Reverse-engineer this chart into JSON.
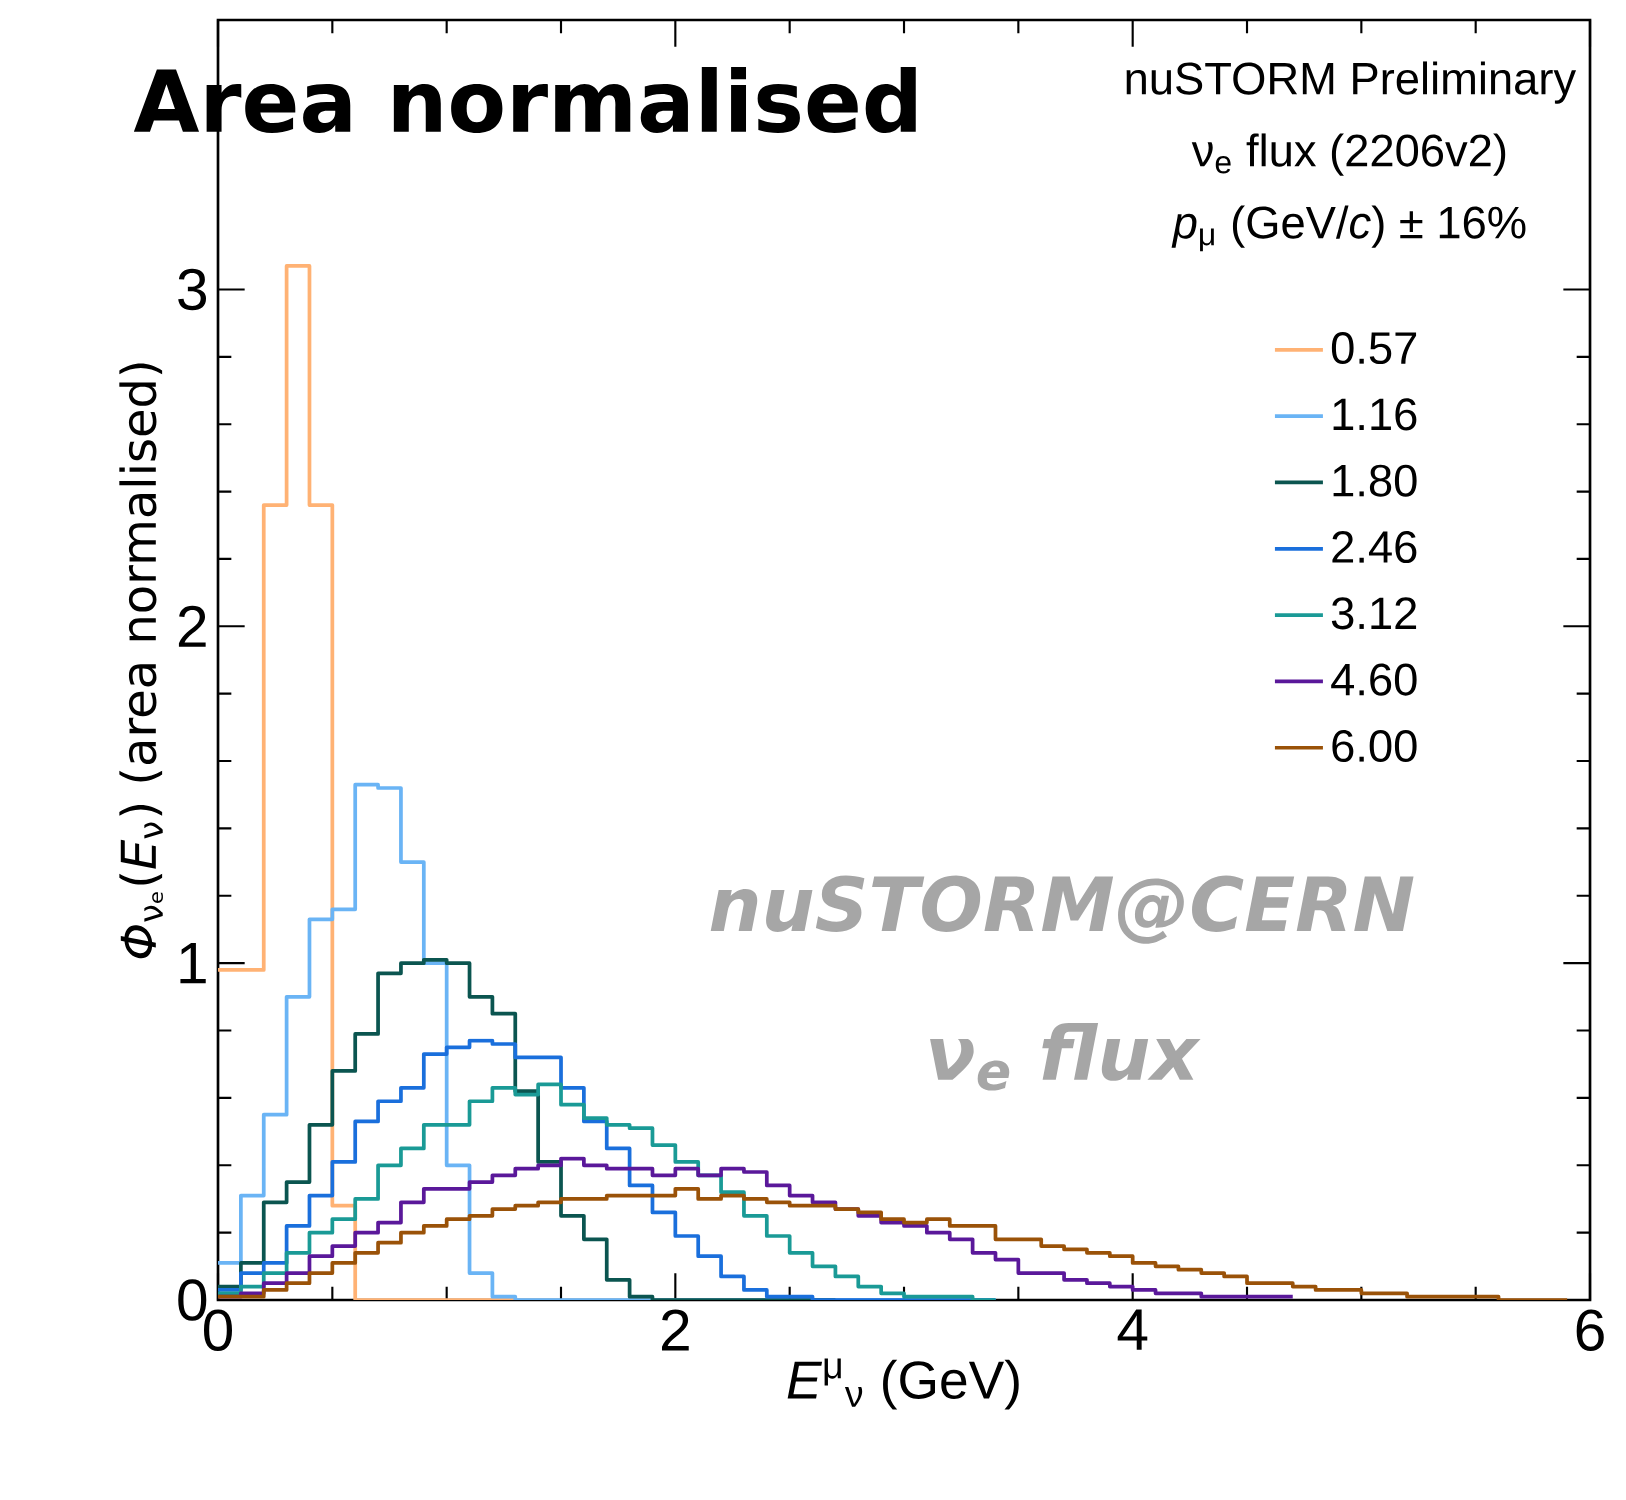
{
  "chart_data": {
    "type": "step",
    "title": "Area normalised",
    "xlabel": "*E*$^{μ}$$_{ν}$ (GeV)",
    "ylabel": "*Φ*$_{νₑ}$(*E*$_{ν}$) (area normalised)",
    "legend_title": "*p*$_{μ}$ (GeV/*c*) ± 16%",
    "annotations": [
      "nuSTORM Preliminary",
      "ν$_{e}$ flux (2206v2)",
      "nuSTORM@CERN",
      "ν$_{e}$ flux"
    ],
    "xlim": [
      0,
      6
    ],
    "ylim": [
      0,
      3.8
    ],
    "xticks": [
      0,
      2,
      4,
      6
    ],
    "yticks": [
      0,
      1,
      2,
      3
    ],
    "legend": "top right",
    "x": [
      0,
      0.1,
      0.2,
      0.3,
      0.4,
      0.5,
      0.6,
      0.7,
      0.8,
      0.9,
      1.0,
      1.1,
      1.2,
      1.3,
      1.4,
      1.5,
      1.6,
      1.7,
      1.8,
      1.9,
      2.0,
      2.1,
      2.2,
      2.3,
      2.4,
      2.5,
      2.6,
      2.7,
      2.8,
      2.9,
      3.0,
      3.1,
      3.2,
      3.3,
      3.4,
      3.5,
      3.6,
      3.7,
      3.8,
      3.9,
      4.0,
      4.1,
      4.2,
      4.3,
      4.4,
      4.5,
      4.6,
      4.7,
      4.8,
      4.9,
      5.0,
      5.1,
      5.2,
      5.3,
      5.4,
      5.5,
      5.6,
      5.7,
      5.8,
      5.9
    ],
    "series": [
      {
        "name": "0.57",
        "color": "#ffb274",
        "values": [
          0.98,
          0.98,
          2.36,
          3.07,
          2.36,
          0.28,
          0,
          0,
          0,
          0,
          0,
          0,
          0,
          0,
          null,
          null,
          null,
          null,
          null,
          null,
          null,
          null,
          null,
          null,
          null,
          null,
          null,
          null,
          null,
          null,
          null,
          null,
          null,
          null,
          null,
          null,
          null,
          null,
          null,
          null,
          null,
          null,
          null,
          null,
          null,
          null,
          null,
          null,
          null,
          null,
          null,
          null,
          null,
          null,
          null,
          null,
          null,
          null,
          null,
          null
        ]
      },
      {
        "name": "1.16",
        "color": "#6ab4f5",
        "values": [
          0.11,
          0.31,
          0.55,
          0.9,
          1.13,
          1.16,
          1.53,
          1.52,
          1.3,
          1.0,
          0.4,
          0.08,
          0.01,
          0,
          0,
          0,
          0,
          0,
          0,
          0,
          0,
          0,
          0,
          0,
          0,
          0,
          0,
          0,
          0,
          0,
          0,
          0,
          0,
          0,
          0,
          null,
          null,
          null,
          null,
          null,
          null,
          null,
          null,
          null,
          null,
          null,
          null,
          null,
          null,
          null,
          null,
          null,
          null,
          null,
          null,
          null,
          null,
          null,
          null,
          null
        ]
      },
      {
        "name": "1.80",
        "color": "#0b5550",
        "values": [
          0.04,
          0.11,
          0.29,
          0.35,
          0.52,
          0.68,
          0.79,
          0.97,
          1.0,
          1.01,
          1.0,
          0.9,
          0.85,
          0.62,
          0.41,
          0.25,
          0.18,
          0.06,
          0.01,
          0,
          0,
          0,
          0,
          0,
          0,
          0,
          0,
          0,
          null,
          null,
          null,
          null,
          null,
          null,
          null,
          null,
          null,
          null,
          null,
          null,
          null,
          null,
          null,
          null,
          null,
          null,
          null,
          null,
          null,
          null,
          null,
          null,
          null,
          null,
          null,
          null,
          null,
          null,
          null,
          null
        ]
      },
      {
        "name": "2.46",
        "color": "#1a6fdc",
        "values": [
          0.03,
          0.08,
          0.11,
          0.22,
          0.31,
          0.41,
          0.53,
          0.59,
          0.63,
          0.73,
          0.75,
          0.77,
          0.76,
          0.72,
          0.72,
          0.63,
          0.53,
          0.45,
          0.34,
          0.26,
          0.19,
          0.13,
          0.07,
          0.03,
          0.01,
          0.01,
          0,
          0,
          0,
          0,
          0,
          0,
          0,
          0,
          0,
          null,
          null,
          null,
          null,
          null,
          null,
          null,
          null,
          null,
          null,
          null,
          null,
          null,
          null,
          null,
          null,
          null,
          null,
          null,
          null,
          null,
          null,
          null,
          null,
          null
        ]
      },
      {
        "name": "3.12",
        "color": "#1a9a96",
        "values": [
          0.02,
          0.04,
          0.08,
          0.14,
          0.2,
          0.24,
          0.3,
          0.4,
          0.45,
          0.52,
          0.52,
          0.59,
          0.63,
          0.61,
          0.64,
          0.58,
          0.54,
          0.52,
          0.51,
          0.46,
          0.41,
          0.37,
          0.32,
          0.25,
          0.19,
          0.14,
          0.1,
          0.07,
          0.04,
          0.02,
          0.01,
          0.01,
          0.01,
          0,
          0,
          null,
          null,
          null,
          null,
          null,
          null,
          null,
          null,
          null,
          null,
          null,
          null,
          null,
          null,
          null,
          null,
          null,
          null,
          null,
          null,
          null,
          null,
          null,
          null,
          null
        ]
      },
      {
        "name": "4.60",
        "color": "#5a189a",
        "values": [
          0.01,
          0.02,
          0.05,
          0.08,
          0.13,
          0.16,
          0.2,
          0.23,
          0.29,
          0.33,
          0.33,
          0.35,
          0.37,
          0.39,
          0.4,
          0.42,
          0.4,
          0.39,
          0.39,
          0.37,
          0.39,
          0.37,
          0.39,
          0.38,
          0.34,
          0.31,
          0.29,
          0.27,
          0.25,
          0.23,
          0.22,
          0.2,
          0.18,
          0.14,
          0.12,
          0.08,
          0.08,
          0.06,
          0.05,
          0.04,
          0.03,
          0.02,
          0.02,
          0.01,
          0.01,
          0.01,
          0.01,
          0.01,
          null,
          null,
          null,
          null,
          null,
          null,
          null,
          null,
          null,
          null,
          null,
          null
        ]
      },
      {
        "name": "6.00",
        "color": "#9a5208",
        "values": [
          0.01,
          0.01,
          0.03,
          0.05,
          0.08,
          0.11,
          0.14,
          0.17,
          0.2,
          0.22,
          0.24,
          0.25,
          0.27,
          0.28,
          0.29,
          0.3,
          0.3,
          0.31,
          0.31,
          0.31,
          0.33,
          0.3,
          0.31,
          0.3,
          0.29,
          0.28,
          0.28,
          0.27,
          0.26,
          0.24,
          0.23,
          0.24,
          0.22,
          0.22,
          0.18,
          0.18,
          0.16,
          0.15,
          0.14,
          0.13,
          0.11,
          0.1,
          0.09,
          0.08,
          0.07,
          0.05,
          0.05,
          0.04,
          0.03,
          0.03,
          0.02,
          0.02,
          0.01,
          0.01,
          0.01,
          0.01,
          0,
          0,
          0,
          0
        ]
      }
    ]
  }
}
